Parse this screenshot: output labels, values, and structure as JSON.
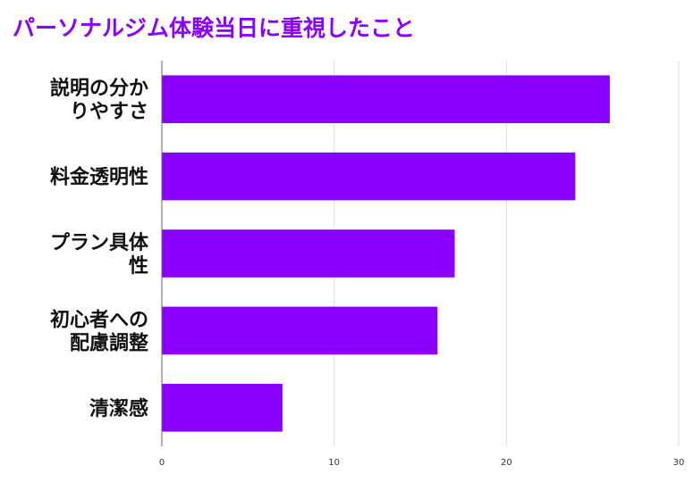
{
  "chart_data": {
    "type": "bar",
    "orientation": "horizontal",
    "title": "パーソナルジム体験当日に重視したこと",
    "xlabel": "",
    "ylabel": "",
    "categories": [
      [
        "説明の分か",
        "りやすさ"
      ],
      [
        "料金透明性"
      ],
      [
        "プラン具体",
        "性"
      ],
      [
        "初心者への",
        "配慮調整"
      ],
      [
        "清潔感"
      ]
    ],
    "values": [
      26,
      24,
      17,
      16,
      7
    ],
    "xlim": [
      0,
      30
    ],
    "ticks": [
      "0",
      "10",
      "20",
      "30"
    ],
    "tick_values": [
      0,
      10,
      20,
      30
    ],
    "grid": true,
    "legend": "none",
    "bar_color": "#8a00ff"
  }
}
